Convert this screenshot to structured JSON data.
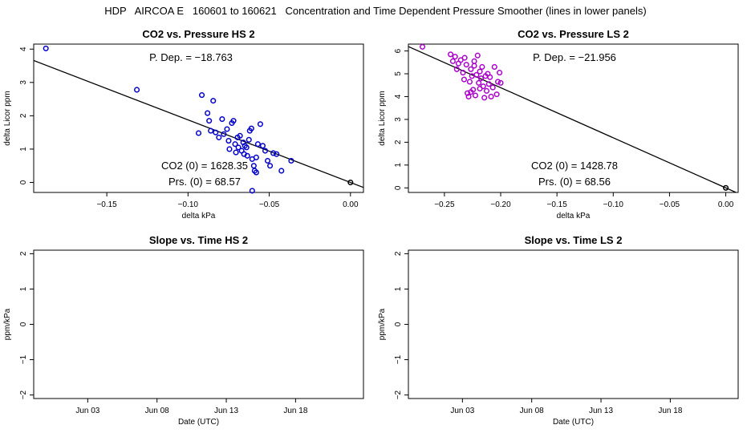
{
  "page_title": "HDP   AIRCOA E   160601 to 160621   Concentration and Time Dependent Pressure Smoother (lines in lower panels)",
  "chart_data": [
    {
      "id": "hs-scatter",
      "type": "scatter",
      "title": "CO2 vs. Pressure HS 2",
      "xlabel": "delta kPa",
      "ylabel": "delta Licor ppm",
      "xlim": [
        -0.195,
        0.008
      ],
      "ylim": [
        -0.3,
        4.15
      ],
      "xticks": [
        -0.15,
        -0.1,
        -0.05,
        0.0
      ],
      "xtick_labels": [
        "−0.15",
        "−0.10",
        "−0.05",
        "0.00"
      ],
      "yticks": [
        0,
        1,
        2,
        3,
        4
      ],
      "ytick_labels": [
        "0",
        "1",
        "2",
        "3",
        "4"
      ],
      "point_color": "#0000cc",
      "fit_line": {
        "slope": -18.763,
        "intercept": 0.0
      },
      "annotations": {
        "pdep": "P. Dep. =  −18.763",
        "co2zero": "CO2 (0) =  1628.35",
        "prszero": "Prs. (0) =  68.57"
      },
      "points": [
        [
          -0.1875,
          4.02
        ],
        [
          -0.1315,
          2.78
        ],
        [
          -0.0915,
          2.62
        ],
        [
          -0.0845,
          2.45
        ],
        [
          -0.0935,
          1.48
        ],
        [
          -0.088,
          2.08
        ],
        [
          -0.087,
          1.85
        ],
        [
          -0.086,
          1.55
        ],
        [
          -0.081,
          1.35
        ],
        [
          -0.079,
          1.9
        ],
        [
          -0.078,
          1.45
        ],
        [
          -0.076,
          1.6
        ],
        [
          -0.075,
          1.25
        ],
        [
          -0.0745,
          1.0
        ],
        [
          -0.073,
          1.78
        ],
        [
          -0.072,
          1.85
        ],
        [
          -0.071,
          1.15
        ],
        [
          -0.0705,
          0.9
        ],
        [
          -0.0695,
          1.35
        ],
        [
          -0.069,
          1.05
        ],
        [
          -0.068,
          1.4
        ],
        [
          -0.067,
          0.95
        ],
        [
          -0.066,
          1.2
        ],
        [
          -0.065,
          1.1
        ],
        [
          -0.064,
          1.05
        ],
        [
          -0.0635,
          0.8
        ],
        [
          -0.0625,
          1.28
        ],
        [
          -0.062,
          1.55
        ],
        [
          -0.061,
          1.62
        ],
        [
          -0.0605,
          0.7
        ],
        [
          -0.0595,
          0.5
        ],
        [
          -0.059,
          0.35
        ],
        [
          -0.058,
          0.75
        ],
        [
          -0.057,
          1.15
        ],
        [
          -0.0555,
          1.75
        ],
        [
          -0.054,
          1.1
        ],
        [
          -0.0525,
          0.95
        ],
        [
          -0.051,
          0.65
        ],
        [
          -0.0495,
          0.5
        ],
        [
          -0.0475,
          0.88
        ],
        [
          -0.0455,
          0.85
        ],
        [
          -0.0425,
          0.35
        ],
        [
          -0.0365,
          0.65
        ],
        [
          -0.0605,
          -0.25
        ],
        [
          -0.083,
          1.5
        ],
        [
          -0.0655,
          0.85
        ],
        [
          -0.058,
          0.3
        ],
        [
          0.0,
          0.0
        ]
      ]
    },
    {
      "id": "ls-scatter",
      "type": "scatter",
      "title": "CO2 vs. Pressure LS 2",
      "xlabel": "delta kPa",
      "ylabel": "delta Licor ppm",
      "xlim": [
        -0.282,
        0.011
      ],
      "ylim": [
        -0.2,
        6.3
      ],
      "xticks": [
        -0.25,
        -0.2,
        -0.15,
        -0.1,
        -0.05,
        0.0
      ],
      "xtick_labels": [
        "−0.25",
        "−0.20",
        "−0.15",
        "−0.10",
        "−0.05",
        "0.00"
      ],
      "yticks": [
        0,
        1,
        2,
        3,
        4,
        5,
        6
      ],
      "ytick_labels": [
        "0",
        "1",
        "2",
        "3",
        "4",
        "5",
        "6"
      ],
      "point_color": "#aa00cc",
      "fit_line": {
        "slope": -21.956,
        "intercept": 0.0
      },
      "annotations": {
        "pdep": "P. Dep. =  −21.956",
        "co2zero": "CO2 (0) =  1428.78",
        "prszero": "Prs. (0) =  68.56"
      },
      "points": [
        [
          -0.2695,
          6.18
        ],
        [
          -0.2445,
          5.85
        ],
        [
          -0.2425,
          5.55
        ],
        [
          -0.2405,
          5.75
        ],
        [
          -0.239,
          5.2
        ],
        [
          -0.2375,
          5.45
        ],
        [
          -0.2355,
          5.6
        ],
        [
          -0.2335,
          5.05
        ],
        [
          -0.2325,
          4.75
        ],
        [
          -0.232,
          5.7
        ],
        [
          -0.2305,
          5.4
        ],
        [
          -0.2295,
          4.15
        ],
        [
          -0.2285,
          4.0
        ],
        [
          -0.2275,
          4.65
        ],
        [
          -0.2265,
          5.2
        ],
        [
          -0.2255,
          4.9
        ],
        [
          -0.2245,
          4.3
        ],
        [
          -0.2235,
          5.35
        ],
        [
          -0.2225,
          4.05
        ],
        [
          -0.2215,
          4.95
        ],
        [
          -0.2205,
          5.8
        ],
        [
          -0.2195,
          4.6
        ],
        [
          -0.2185,
          5.1
        ],
        [
          -0.2175,
          4.8
        ],
        [
          -0.2165,
          5.3
        ],
        [
          -0.2155,
          4.45
        ],
        [
          -0.2145,
          3.95
        ],
        [
          -0.2135,
          4.9
        ],
        [
          -0.2125,
          4.25
        ],
        [
          -0.2115,
          5.0
        ],
        [
          -0.2105,
          4.55
        ],
        [
          -0.2095,
          4.85
        ],
        [
          -0.2085,
          4.0
        ],
        [
          -0.207,
          4.4
        ],
        [
          -0.2055,
          5.3
        ],
        [
          -0.2035,
          4.1
        ],
        [
          -0.2025,
          4.65
        ],
        [
          -0.201,
          5.05
        ],
        [
          -0.2,
          4.6
        ],
        [
          -0.2265,
          4.2
        ],
        [
          -0.2235,
          5.55
        ],
        [
          -0.2185,
          4.35
        ],
        [
          0.0,
          0.0
        ]
      ]
    },
    {
      "id": "hs-slope",
      "type": "line",
      "title": "Slope vs. Time HS 2",
      "xlabel": "Date (UTC)",
      "ylabel": "ppm/kPa",
      "xlim": [
        -1.9,
        21.9
      ],
      "ylim": [
        -2.1,
        2.1
      ],
      "xticks": [
        2,
        7,
        12,
        17
      ],
      "xtick_labels": [
        "Jun 03",
        "Jun 08",
        "Jun 13",
        "Jun 18"
      ],
      "yticks": [
        -2,
        -1,
        0,
        1,
        2
      ],
      "ytick_labels": [
        "−2",
        "−1",
        "0",
        "1",
        "2"
      ],
      "series": []
    },
    {
      "id": "ls-slope",
      "type": "line",
      "title": "Slope vs. Time LS 2",
      "xlabel": "Date (UTC)",
      "ylabel": "ppm/kPa",
      "xlim": [
        -1.9,
        21.9
      ],
      "ylim": [
        -2.1,
        2.1
      ],
      "xticks": [
        2,
        7,
        12,
        17
      ],
      "xtick_labels": [
        "Jun 03",
        "Jun 08",
        "Jun 13",
        "Jun 18"
      ],
      "yticks": [
        -2,
        -1,
        0,
        1,
        2
      ],
      "ytick_labels": [
        "−2",
        "−1",
        "0",
        "1",
        "2"
      ],
      "series": []
    }
  ]
}
